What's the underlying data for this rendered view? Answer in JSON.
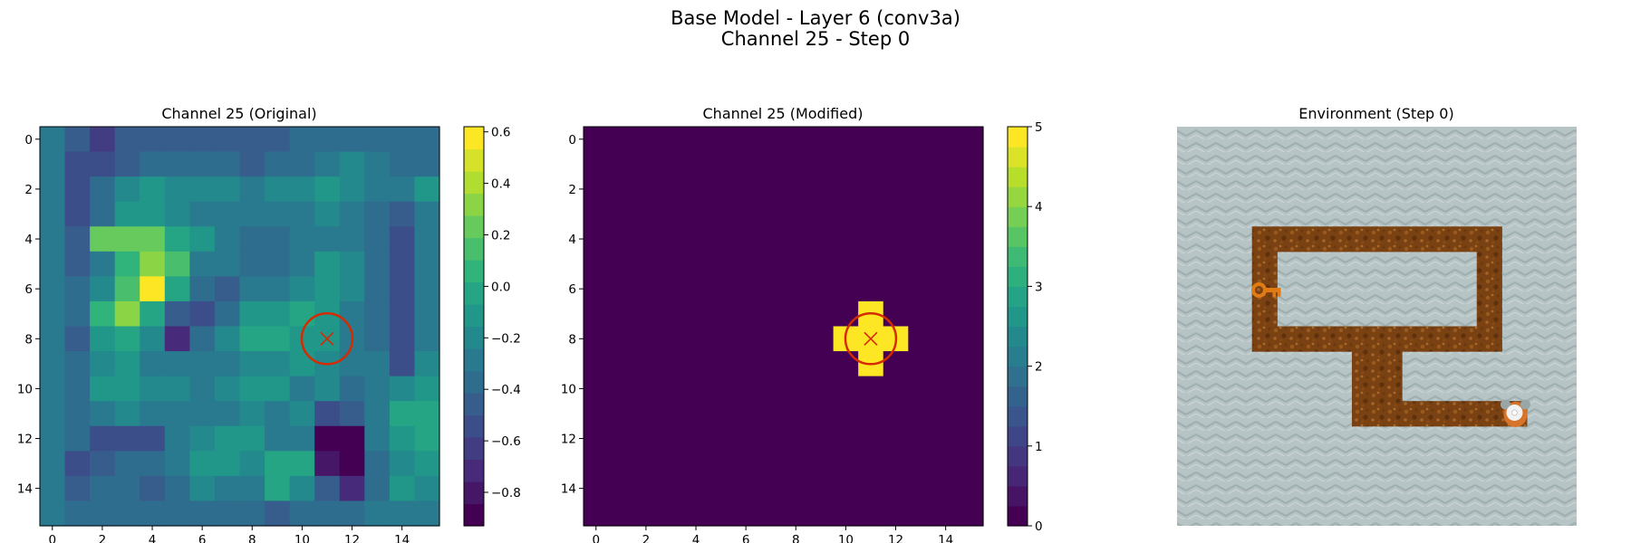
{
  "figure": {
    "title_line1": "Base Model - Layer 6 (conv3a)",
    "title_line2": "Channel 25 - Step 0"
  },
  "chart_data": [
    {
      "type": "heatmap",
      "title": "Channel 25 (Original)",
      "x_ticks": [
        0,
        2,
        4,
        6,
        8,
        10,
        12,
        14
      ],
      "y_ticks": [
        0,
        2,
        4,
        6,
        8,
        10,
        12,
        14
      ],
      "xlim": [
        -0.5,
        15.5
      ],
      "ylim": [
        15.5,
        -0.5
      ],
      "colormap": "viridis",
      "colorbar": {
        "min": -0.93,
        "max": 0.62,
        "levels": 18,
        "ticks": [
          "0.6",
          "0.4",
          "0.2",
          "0.0",
          "−0.2",
          "−0.4",
          "−0.6",
          "−0.8"
        ],
        "tick_values": [
          0.6,
          0.4,
          0.2,
          0.0,
          -0.2,
          -0.4,
          -0.6,
          -0.8
        ]
      },
      "marker": {
        "x": 11,
        "y": 8,
        "shape": "x-in-circle",
        "color": "#d62a00"
      },
      "values": [
        [
          -0.3,
          -0.45,
          -0.62,
          -0.48,
          -0.45,
          -0.45,
          -0.45,
          -0.45,
          -0.45,
          -0.45,
          -0.4,
          -0.35,
          -0.35,
          -0.35,
          -0.4,
          -0.35
        ],
        [
          -0.25,
          -0.5,
          -0.55,
          -0.45,
          -0.4,
          -0.4,
          -0.4,
          -0.4,
          -0.45,
          -0.4,
          -0.35,
          -0.25,
          -0.2,
          -0.25,
          -0.35,
          -0.4
        ],
        [
          -0.3,
          -0.58,
          -0.4,
          -0.2,
          -0.15,
          -0.2,
          -0.2,
          -0.2,
          -0.25,
          -0.2,
          -0.2,
          -0.15,
          -0.2,
          -0.3,
          -0.3,
          -0.1
        ],
        [
          -0.3,
          -0.55,
          -0.35,
          -0.1,
          -0.12,
          -0.2,
          -0.25,
          -0.25,
          -0.3,
          -0.3,
          -0.25,
          -0.2,
          -0.25,
          -0.35,
          -0.45,
          -0.25
        ],
        [
          -0.3,
          -0.45,
          0.2,
          0.25,
          0.25,
          0.0,
          -0.1,
          -0.3,
          -0.35,
          -0.35,
          -0.3,
          -0.25,
          -0.3,
          -0.35,
          -0.5,
          -0.3
        ],
        [
          -0.3,
          -0.45,
          -0.25,
          0.05,
          0.35,
          0.15,
          -0.25,
          -0.3,
          -0.35,
          -0.35,
          -0.25,
          -0.15,
          -0.2,
          -0.35,
          -0.55,
          -0.3
        ],
        [
          -0.25,
          -0.4,
          -0.2,
          0.15,
          0.62,
          -0.05,
          -0.4,
          -0.45,
          -0.25,
          -0.25,
          -0.2,
          -0.15,
          -0.2,
          -0.35,
          -0.55,
          -0.3
        ],
        [
          -0.3,
          -0.4,
          0.05,
          0.3,
          0.0,
          -0.45,
          -0.55,
          -0.35,
          -0.1,
          -0.1,
          -0.05,
          -0.15,
          -0.25,
          -0.35,
          -0.55,
          -0.3
        ],
        [
          -0.3,
          -0.45,
          -0.1,
          0.0,
          -0.2,
          -0.7,
          -0.4,
          -0.2,
          0.0,
          0.0,
          -0.1,
          -0.15,
          -0.3,
          -0.4,
          -0.55,
          -0.3
        ],
        [
          -0.25,
          -0.4,
          -0.2,
          -0.15,
          -0.25,
          -0.3,
          -0.3,
          -0.25,
          -0.2,
          -0.2,
          -0.15,
          -0.2,
          -0.3,
          -0.3,
          -0.5,
          -0.2
        ],
        [
          -0.3,
          -0.35,
          -0.15,
          -0.1,
          -0.2,
          -0.2,
          -0.25,
          -0.2,
          -0.15,
          -0.15,
          -0.25,
          -0.2,
          -0.35,
          -0.25,
          -0.2,
          -0.1
        ],
        [
          -0.25,
          -0.4,
          -0.3,
          -0.2,
          -0.3,
          -0.3,
          -0.25,
          -0.25,
          -0.2,
          -0.25,
          -0.2,
          -0.55,
          -0.45,
          -0.25,
          0.0,
          0.0
        ],
        [
          -0.3,
          -0.4,
          -0.55,
          -0.5,
          -0.5,
          -0.25,
          -0.2,
          -0.15,
          -0.15,
          -0.25,
          -0.25,
          -0.93,
          -0.85,
          -0.3,
          -0.1,
          0.0
        ],
        [
          -0.25,
          -0.5,
          -0.45,
          -0.4,
          -0.35,
          -0.3,
          -0.1,
          -0.1,
          -0.2,
          -0.05,
          -0.05,
          -0.8,
          -0.93,
          -0.4,
          -0.2,
          -0.1
        ],
        [
          -0.3,
          -0.45,
          -0.4,
          -0.4,
          -0.45,
          -0.4,
          -0.2,
          -0.25,
          -0.25,
          -0.05,
          -0.2,
          -0.45,
          -0.7,
          -0.35,
          -0.1,
          -0.2
        ],
        [
          -0.25,
          -0.4,
          -0.4,
          -0.4,
          -0.4,
          -0.35,
          -0.4,
          -0.4,
          -0.4,
          -0.45,
          -0.4,
          -0.4,
          -0.35,
          -0.3,
          -0.25,
          -0.25
        ]
      ]
    },
    {
      "type": "heatmap",
      "title": "Channel 25 (Modified)",
      "x_ticks": [
        0,
        2,
        4,
        6,
        8,
        10,
        12,
        14
      ],
      "y_ticks": [
        0,
        2,
        4,
        6,
        8,
        10,
        12,
        14
      ],
      "xlim": [
        -0.5,
        15.5
      ],
      "ylim": [
        15.5,
        -0.5
      ],
      "colormap": "viridis",
      "colorbar": {
        "min": 0,
        "max": 5,
        "levels": 20,
        "ticks": [
          "5",
          "4",
          "3",
          "2",
          "1",
          "0"
        ],
        "tick_values": [
          5,
          4,
          3,
          2,
          1,
          0
        ]
      },
      "marker": {
        "x": 11,
        "y": 8,
        "shape": "x-in-circle",
        "color": "#d62a00"
      },
      "background_value": 0,
      "cells": [
        {
          "x": 11,
          "y": 7,
          "value": 5
        },
        {
          "x": 10,
          "y": 8,
          "value": 5
        },
        {
          "x": 11,
          "y": 8,
          "value": 5
        },
        {
          "x": 12,
          "y": 8,
          "value": 5
        },
        {
          "x": 11,
          "y": 9,
          "value": 5
        }
      ]
    },
    {
      "type": "image",
      "title": "Environment (Step 0)",
      "grid_size": 16,
      "path_color": "#7a4212",
      "background_color": "#b5c2c3",
      "corridor_tiles": [
        [
          3,
          4
        ],
        [
          4,
          4
        ],
        [
          5,
          4
        ],
        [
          6,
          4
        ],
        [
          7,
          4
        ],
        [
          8,
          4
        ],
        [
          9,
          4
        ],
        [
          10,
          4
        ],
        [
          11,
          4
        ],
        [
          12,
          4
        ],
        [
          3,
          5
        ],
        [
          12,
          5
        ],
        [
          3,
          6
        ],
        [
          12,
          6
        ],
        [
          3,
          7
        ],
        [
          12,
          7
        ],
        [
          3,
          8
        ],
        [
          4,
          8
        ],
        [
          5,
          8
        ],
        [
          6,
          8
        ],
        [
          7,
          8
        ],
        [
          8,
          8
        ],
        [
          9,
          8
        ],
        [
          10,
          8
        ],
        [
          11,
          8
        ],
        [
          12,
          8
        ],
        [
          7,
          9
        ],
        [
          8,
          9
        ],
        [
          7,
          10
        ],
        [
          8,
          10
        ],
        [
          7,
          11
        ],
        [
          8,
          11
        ],
        [
          9,
          11
        ],
        [
          10,
          11
        ],
        [
          11,
          11
        ],
        [
          12,
          11
        ],
        [
          13,
          11
        ]
      ],
      "key": {
        "x": 3,
        "y": 6,
        "color": "#e07a14",
        "icon": "key-icon"
      },
      "agent": {
        "x": 13,
        "y": 11,
        "icon": "mouse-icon"
      }
    }
  ]
}
